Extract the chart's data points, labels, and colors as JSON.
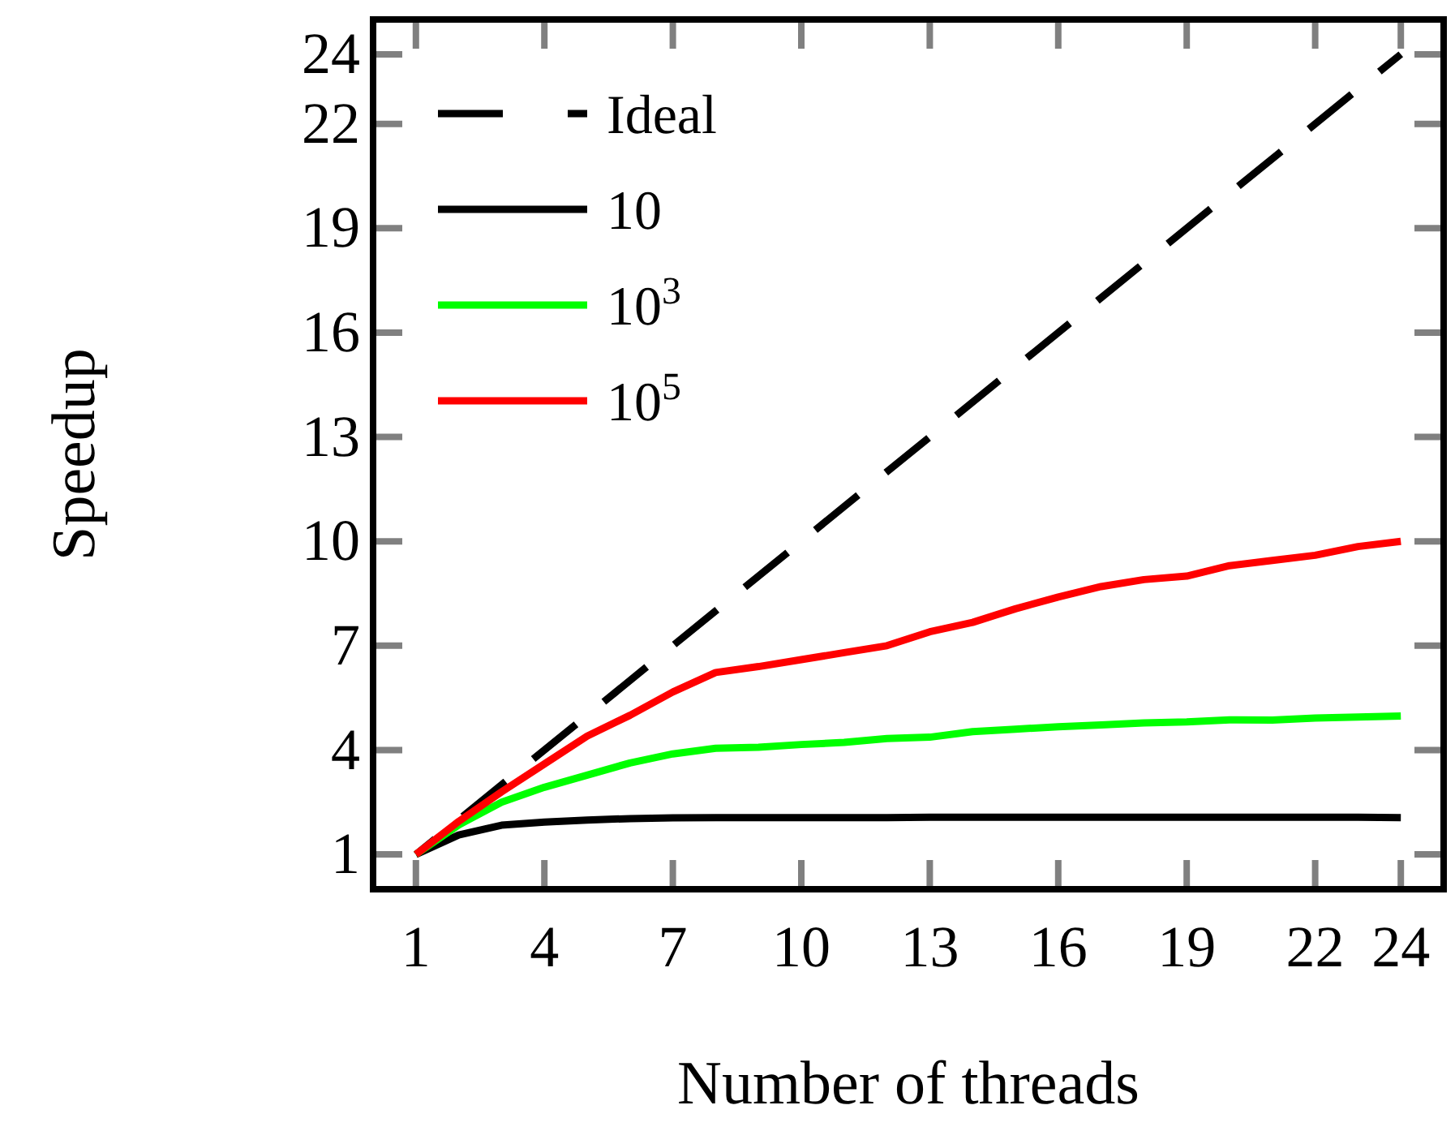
{
  "chart_data": {
    "type": "line",
    "xlabel": "Number of threads",
    "ylabel": "Speedup",
    "x": [
      1,
      2,
      3,
      4,
      5,
      6,
      7,
      8,
      9,
      10,
      11,
      12,
      13,
      14,
      15,
      16,
      17,
      18,
      19,
      20,
      21,
      22,
      23,
      24
    ],
    "series": [
      {
        "name": "Ideal",
        "color": "#000000",
        "line_style": "dashed",
        "x": [
          1,
          24
        ],
        "values": [
          1,
          24
        ]
      },
      {
        "name": "10",
        "color": "#000000",
        "values": [
          1,
          1.56,
          1.84,
          1.93,
          1.99,
          2.03,
          2.05,
          2.06,
          2.06,
          2.06,
          2.06,
          2.06,
          2.07,
          2.07,
          2.07,
          2.07,
          2.07,
          2.07,
          2.07,
          2.07,
          2.07,
          2.07,
          2.07,
          2.06
        ]
      },
      {
        "name": "10$^{3}$",
        "color": "#00ff00",
        "values": [
          1,
          1.85,
          2.5,
          2.93,
          3.28,
          3.63,
          3.89,
          4.05,
          4.08,
          4.16,
          4.22,
          4.33,
          4.37,
          4.53,
          4.6,
          4.67,
          4.72,
          4.78,
          4.81,
          4.87,
          4.86,
          4.92,
          4.95,
          4.98
        ]
      },
      {
        "name": "10$^{5}$",
        "color": "#ff0000",
        "values": [
          1,
          1.95,
          2.8,
          3.6,
          4.4,
          5.0,
          5.67,
          6.23,
          6.4,
          6.6,
          6.8,
          7.0,
          7.4,
          7.67,
          8.06,
          8.4,
          8.7,
          8.9,
          9.0,
          9.3,
          9.45,
          9.6,
          9.85,
          10.0
        ]
      }
    ],
    "xlim": [
      0,
      25
    ],
    "ylim": [
      0,
      25
    ],
    "xticks": [
      1,
      4,
      7,
      10,
      13,
      16,
      19,
      22,
      24
    ],
    "yticks": [
      1,
      4,
      7,
      10,
      13,
      16,
      19,
      22,
      24
    ],
    "legend": "top left",
    "line_style": "solid",
    "marker": "none",
    "grid": false
  }
}
